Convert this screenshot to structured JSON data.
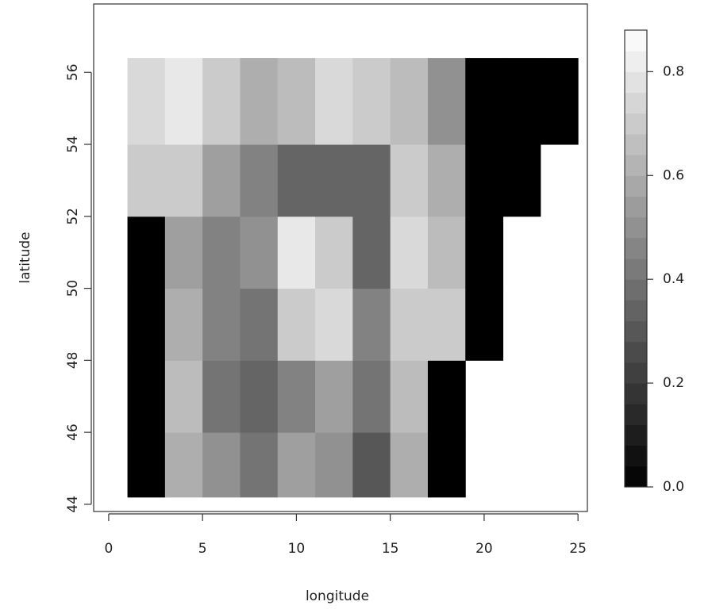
{
  "chart_data": {
    "type": "image",
    "xlabel": "longitude",
    "ylabel": "latitude",
    "xlim": [
      -0.8,
      25.5
    ],
    "ylim": [
      43.8,
      57.9
    ],
    "xticks": [
      0,
      5,
      10,
      15,
      20,
      25
    ],
    "yticks": [
      44,
      46,
      48,
      50,
      52,
      54,
      56
    ],
    "x_edges": [
      1,
      3,
      5,
      7,
      9,
      11,
      13,
      15,
      17,
      19,
      21,
      23,
      25
    ],
    "y_edges": [
      44.2,
      46,
      48,
      50,
      52,
      54,
      56.4
    ],
    "values": [
      [
        0,
        0.6,
        0.5,
        0.4,
        0.55,
        0.5,
        0.3,
        0.6,
        0,
        null,
        null,
        null
      ],
      [
        0,
        0.65,
        0.4,
        0.35,
        0.45,
        0.55,
        0.4,
        0.65,
        0,
        null,
        null,
        null
      ],
      [
        0,
        0.6,
        0.45,
        0.4,
        0.7,
        0.75,
        0.45,
        0.7,
        0.7,
        0,
        null,
        null
      ],
      [
        0,
        0.55,
        0.45,
        0.5,
        0.8,
        0.7,
        0.35,
        0.75,
        0.65,
        0,
        null,
        null
      ],
      [
        0.7,
        0.7,
        0.55,
        0.45,
        0.35,
        0.35,
        0.35,
        0.7,
        0.6,
        0,
        0,
        null
      ],
      [
        0.75,
        0.8,
        0.7,
        0.6,
        0.65,
        0.75,
        0.7,
        0.65,
        0.5,
        0,
        0,
        0
      ]
    ],
    "zlim": [
      0,
      0.88
    ],
    "levels": 22,
    "colorbar_ticks": [
      {
        "value": 0,
        "label": "0.0"
      },
      0.2,
      0.4,
      0.6,
      0.8
    ]
  }
}
